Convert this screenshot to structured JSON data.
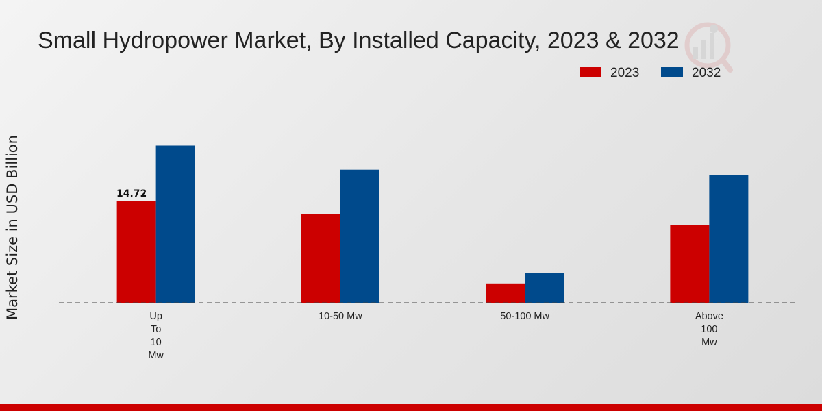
{
  "chart_data": {
    "type": "bar",
    "title": "Small Hydropower Market, By Installed Capacity, 2023 & 2032",
    "xlabel": "",
    "ylabel": "Market Size in USD Billion",
    "categories": [
      [
        "Up",
        "To",
        "10",
        "Mw"
      ],
      [
        "10-50 Mw"
      ],
      [
        "50-100 Mw"
      ],
      [
        "Above",
        "100",
        "Mw"
      ]
    ],
    "series": [
      {
        "name": "2023",
        "color": "#cc0000",
        "values": [
          14.72,
          12.9,
          2.8,
          11.3
        ]
      },
      {
        "name": "2032",
        "color": "#004a8c",
        "values": [
          22.8,
          19.3,
          4.3,
          18.5
        ]
      }
    ],
    "data_labels": [
      {
        "series": 0,
        "index": 0,
        "text": "14.72"
      }
    ],
    "ylim": [
      0,
      30
    ],
    "grid": false,
    "legend_position": "top-right"
  },
  "brand": {
    "accent": "#cc0000",
    "watermark_icon": "analytics-logo-icon"
  }
}
